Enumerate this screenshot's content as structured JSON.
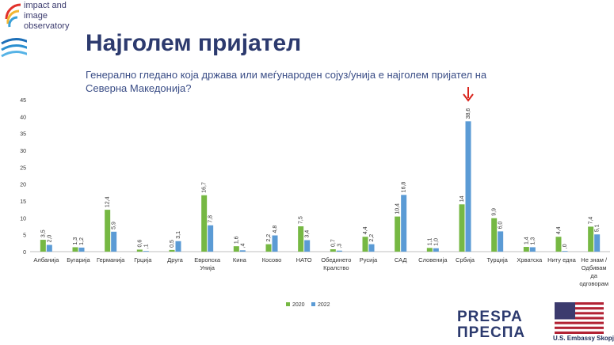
{
  "logo": {
    "line1": "impact and",
    "line2": "image",
    "line3": "observatory"
  },
  "title": "Најголем пријател",
  "subtitle": "Генерално гледано која држава или меѓународен сојуз/унија е најголем пријател на Северна Македонија?",
  "footer": {
    "presspa": "PRESPA",
    "presspa_cyr": "ПРЕСПА",
    "embassy": "U.S. Embassy Skopje"
  },
  "colors": {
    "series2020": "#76b843",
    "series2022": "#5b9bd5",
    "arrow": "#d9241c",
    "axis_text": "#333333"
  },
  "chart_data": {
    "type": "bar",
    "categories": [
      [
        "Албанија"
      ],
      [
        "Бугарија"
      ],
      [
        "Германија"
      ],
      [
        "Грција"
      ],
      [
        "Друга"
      ],
      [
        "Европска",
        "Унија"
      ],
      [
        "Кина"
      ],
      [
        "Косово"
      ],
      [
        "НАТО"
      ],
      [
        "Обединето",
        "Кралство"
      ],
      [
        "Русија"
      ],
      [
        "САД"
      ],
      [
        "Словенија"
      ],
      [
        "Србија"
      ],
      [
        "Турција"
      ],
      [
        "Хрватска"
      ],
      [
        "Ниту една"
      ],
      [
        "Не знам /",
        "Одбивам",
        "да",
        "одговорам"
      ]
    ],
    "series": [
      {
        "name": "2020",
        "values": [
          3.5,
          1.3,
          12.4,
          0.6,
          0.5,
          16.7,
          1.6,
          2.2,
          7.5,
          0.7,
          4.4,
          10.4,
          1.1,
          14,
          9.9,
          1.4,
          4.4,
          7.4
        ],
        "labels": [
          "3,5",
          "1,3",
          "12,4",
          "0,6",
          "0,5",
          "16,7",
          "1,6",
          "2,2",
          "7,5",
          "0,7",
          "4,4",
          "10,4",
          "1,1",
          "14",
          "9,9",
          "1,4",
          "4,4",
          "7,4"
        ]
      },
      {
        "name": "2022",
        "values": [
          2.0,
          1.2,
          5.9,
          0.1,
          3.1,
          7.8,
          0.4,
          4.8,
          3.4,
          0.3,
          2.2,
          16.8,
          1.0,
          38.6,
          6.0,
          1.3,
          0.0,
          5.1
        ],
        "labels": [
          "2,0",
          "1,2",
          "5,9",
          ",1",
          "3,1",
          "7,8",
          ",4",
          "4,8",
          "3,4",
          ",3",
          "2,2",
          "16,8",
          "1,0",
          "38,6",
          "6,0",
          "1,3",
          ",0",
          "5,1"
        ]
      }
    ],
    "ylim": [
      0,
      45
    ],
    "yticks": [
      0,
      5,
      10,
      15,
      20,
      25,
      30,
      35,
      40,
      45
    ],
    "legend_position": "bottom-center",
    "highlight_category_index": 13
  }
}
